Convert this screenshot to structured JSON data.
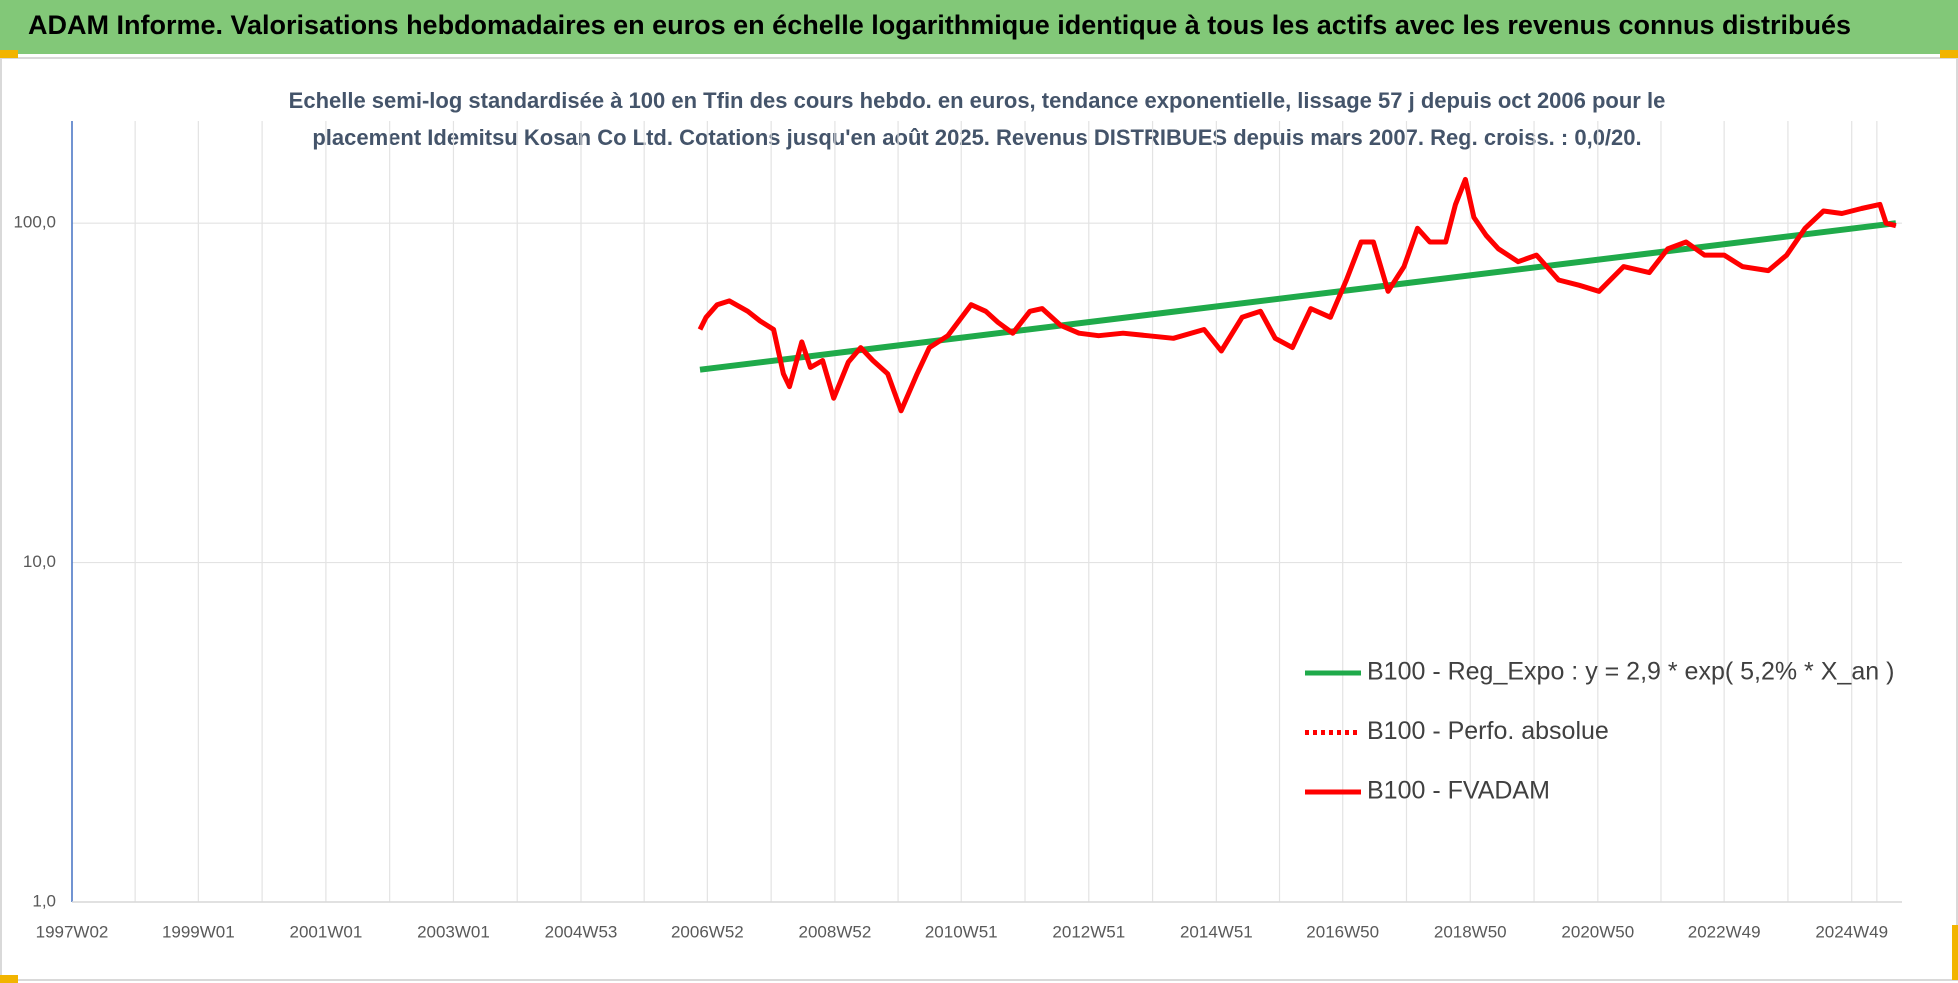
{
  "chart_data": {
    "type": "line",
    "title": "ADAM Informe. Valorisations hebdomadaires en euros en échelle logarithmique identique à tous les actifs avec les revenus connus distribués",
    "subtitle": [
      "Echelle semi-log standardisée à 100 en Tfin des cours hebdo. en euros, tendance exponentielle, lissage 57 j depuis oct 2006 pour le",
      "placement Idemitsu Kosan Co Ltd. Cotations jusqu'en août 2025. Revenus DISTRIBUES depuis mars 2007. Reg. croiss. : 0,0/20."
    ],
    "log_scale": true,
    "grid": true,
    "legend": "lower right",
    "xlim": [
      "1997W02",
      "2025W38"
    ],
    "xticks": [
      "1997W02",
      "1999W01",
      "2001W01",
      "2003W01",
      "2004W53",
      "2006W52",
      "2008W52",
      "2010W51",
      "2012W51",
      "2014W51",
      "2016W50",
      "2018W50",
      "2020W50",
      "2022W49",
      "2024W49"
    ],
    "ylim": [
      1,
      200
    ],
    "yticks": [
      {
        "value": 1,
        "label": "1,0"
      },
      {
        "value": 10,
        "label": "10,0"
      },
      {
        "value": 100,
        "label": "100,0"
      }
    ],
    "series": [
      {
        "name": "B100 - Reg_Expo : y = 2,9 * exp( 5,2% *  X_an )",
        "color": "#1faa4a",
        "dash": "solid",
        "x": [
          "2006W46",
          "2025W33"
        ],
        "values": [
          37,
          100
        ]
      },
      {
        "name": "B100 - Perfo. absolue",
        "color": "#ff0000",
        "dash": "dotted",
        "x": [],
        "values": []
      },
      {
        "name": "B100 - FVADAM",
        "color": "#ff0000",
        "dash": "solid",
        "x": [
          "2006W46",
          "2006W51",
          "2007W08",
          "2007W18",
          "2007W33",
          "2007W43",
          "2008W02",
          "2008W10",
          "2008W15",
          "2008W25",
          "2008W32",
          "2008W42",
          "2008W51",
          "2009W11",
          "2009W21",
          "2009W31",
          "2009W43",
          "2010W02",
          "2010W15",
          "2010W25",
          "2010W40",
          "2011W07",
          "2011W19",
          "2011W29",
          "2011W41",
          "2012W03",
          "2012W13",
          "2012W28",
          "2012W43",
          "2013W07",
          "2013W27",
          "2013W47",
          "2014W16",
          "2014W41",
          "2015W03",
          "2015W20",
          "2015W35",
          "2015W47",
          "2016W09",
          "2016W24",
          "2016W40",
          "2017W01",
          "2017W13",
          "2017W23",
          "2017W35",
          "2017W48",
          "2018W07",
          "2018W17",
          "2018W30",
          "2018W38",
          "2018W46",
          "2019W01",
          "2019W11",
          "2019W21",
          "2019W37",
          "2019W52",
          "2020W18",
          "2020W35",
          "2020W51",
          "2021W19",
          "2021W40",
          "2022W03",
          "2022W18",
          "2022W33",
          "2022W49",
          "2023W12",
          "2023W33",
          "2023W48",
          "2024W11",
          "2024W26",
          "2024W41",
          "2025W05",
          "2025W20",
          "2025W25",
          "2025W33"
        ],
        "values": [
          48.6,
          52.8,
          57.5,
          59,
          55,
          51.5,
          48.6,
          36,
          33,
          44.7,
          37.6,
          39.4,
          30.5,
          39,
          43,
          39.4,
          36,
          28,
          36,
          43,
          46.6,
          57.5,
          55,
          51,
          47.4,
          55,
          56,
          50,
          47.4,
          46.6,
          47.4,
          46.6,
          45.8,
          48.6,
          42,
          52.8,
          55,
          45.8,
          43,
          56,
          52.8,
          68,
          88,
          88,
          63,
          74.5,
          96.6,
          88,
          88,
          113.6,
          134.6,
          104,
          92,
          84,
          77,
          80.5,
          68,
          65.6,
          63,
          74.5,
          71.5,
          84,
          88,
          80.5,
          80.5,
          74.5,
          72.5,
          80.5,
          96.6,
          108.6,
          106.8,
          110.5,
          113.6,
          100,
          98.3
        ]
      }
    ]
  }
}
